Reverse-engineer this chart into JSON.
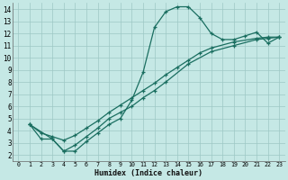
{
  "xlabel": "Humidex (Indice chaleur)",
  "bg_color": "#c5e8e5",
  "grid_color": "#9dc8c5",
  "line_color": "#1a6e60",
  "xlim": [
    -0.5,
    23.5
  ],
  "ylim": [
    1.5,
    14.5
  ],
  "xticks": [
    0,
    1,
    2,
    3,
    4,
    5,
    6,
    7,
    8,
    9,
    10,
    11,
    12,
    13,
    14,
    15,
    16,
    17,
    18,
    19,
    20,
    21,
    22,
    23
  ],
  "yticks": [
    2,
    3,
    4,
    5,
    6,
    7,
    8,
    9,
    10,
    11,
    12,
    13,
    14
  ],
  "curve1_x": [
    1,
    2,
    3,
    4,
    5,
    6,
    7,
    8,
    9,
    10,
    11,
    12,
    13,
    14,
    15,
    16,
    17,
    18,
    19,
    20,
    21,
    22,
    23
  ],
  "curve1_y": [
    4.5,
    3.3,
    3.3,
    2.3,
    2.3,
    3.1,
    3.8,
    4.5,
    5.0,
    6.5,
    8.8,
    12.5,
    13.8,
    14.2,
    14.2,
    13.3,
    12.0,
    11.5,
    11.5,
    11.8,
    12.1,
    11.2,
    11.7
  ],
  "curve2_x": [
    1,
    2,
    3,
    4,
    5,
    6,
    7,
    8,
    9,
    10,
    11,
    12,
    13,
    14,
    15,
    16,
    17,
    19,
    21,
    22,
    23
  ],
  "curve2_y": [
    4.5,
    3.8,
    3.5,
    3.2,
    3.6,
    4.2,
    4.8,
    5.5,
    6.1,
    6.7,
    7.3,
    7.9,
    8.6,
    9.2,
    9.8,
    10.4,
    10.8,
    11.3,
    11.6,
    11.7,
    11.7
  ],
  "curve3_x": [
    1,
    3,
    4,
    5,
    6,
    7,
    8,
    9,
    10,
    11,
    12,
    13,
    15,
    17,
    19,
    21,
    22,
    23
  ],
  "curve3_y": [
    4.5,
    3.3,
    2.3,
    2.8,
    3.5,
    4.2,
    5.0,
    5.5,
    6.0,
    6.7,
    7.3,
    8.0,
    9.5,
    10.5,
    11.0,
    11.5,
    11.6,
    11.7
  ]
}
